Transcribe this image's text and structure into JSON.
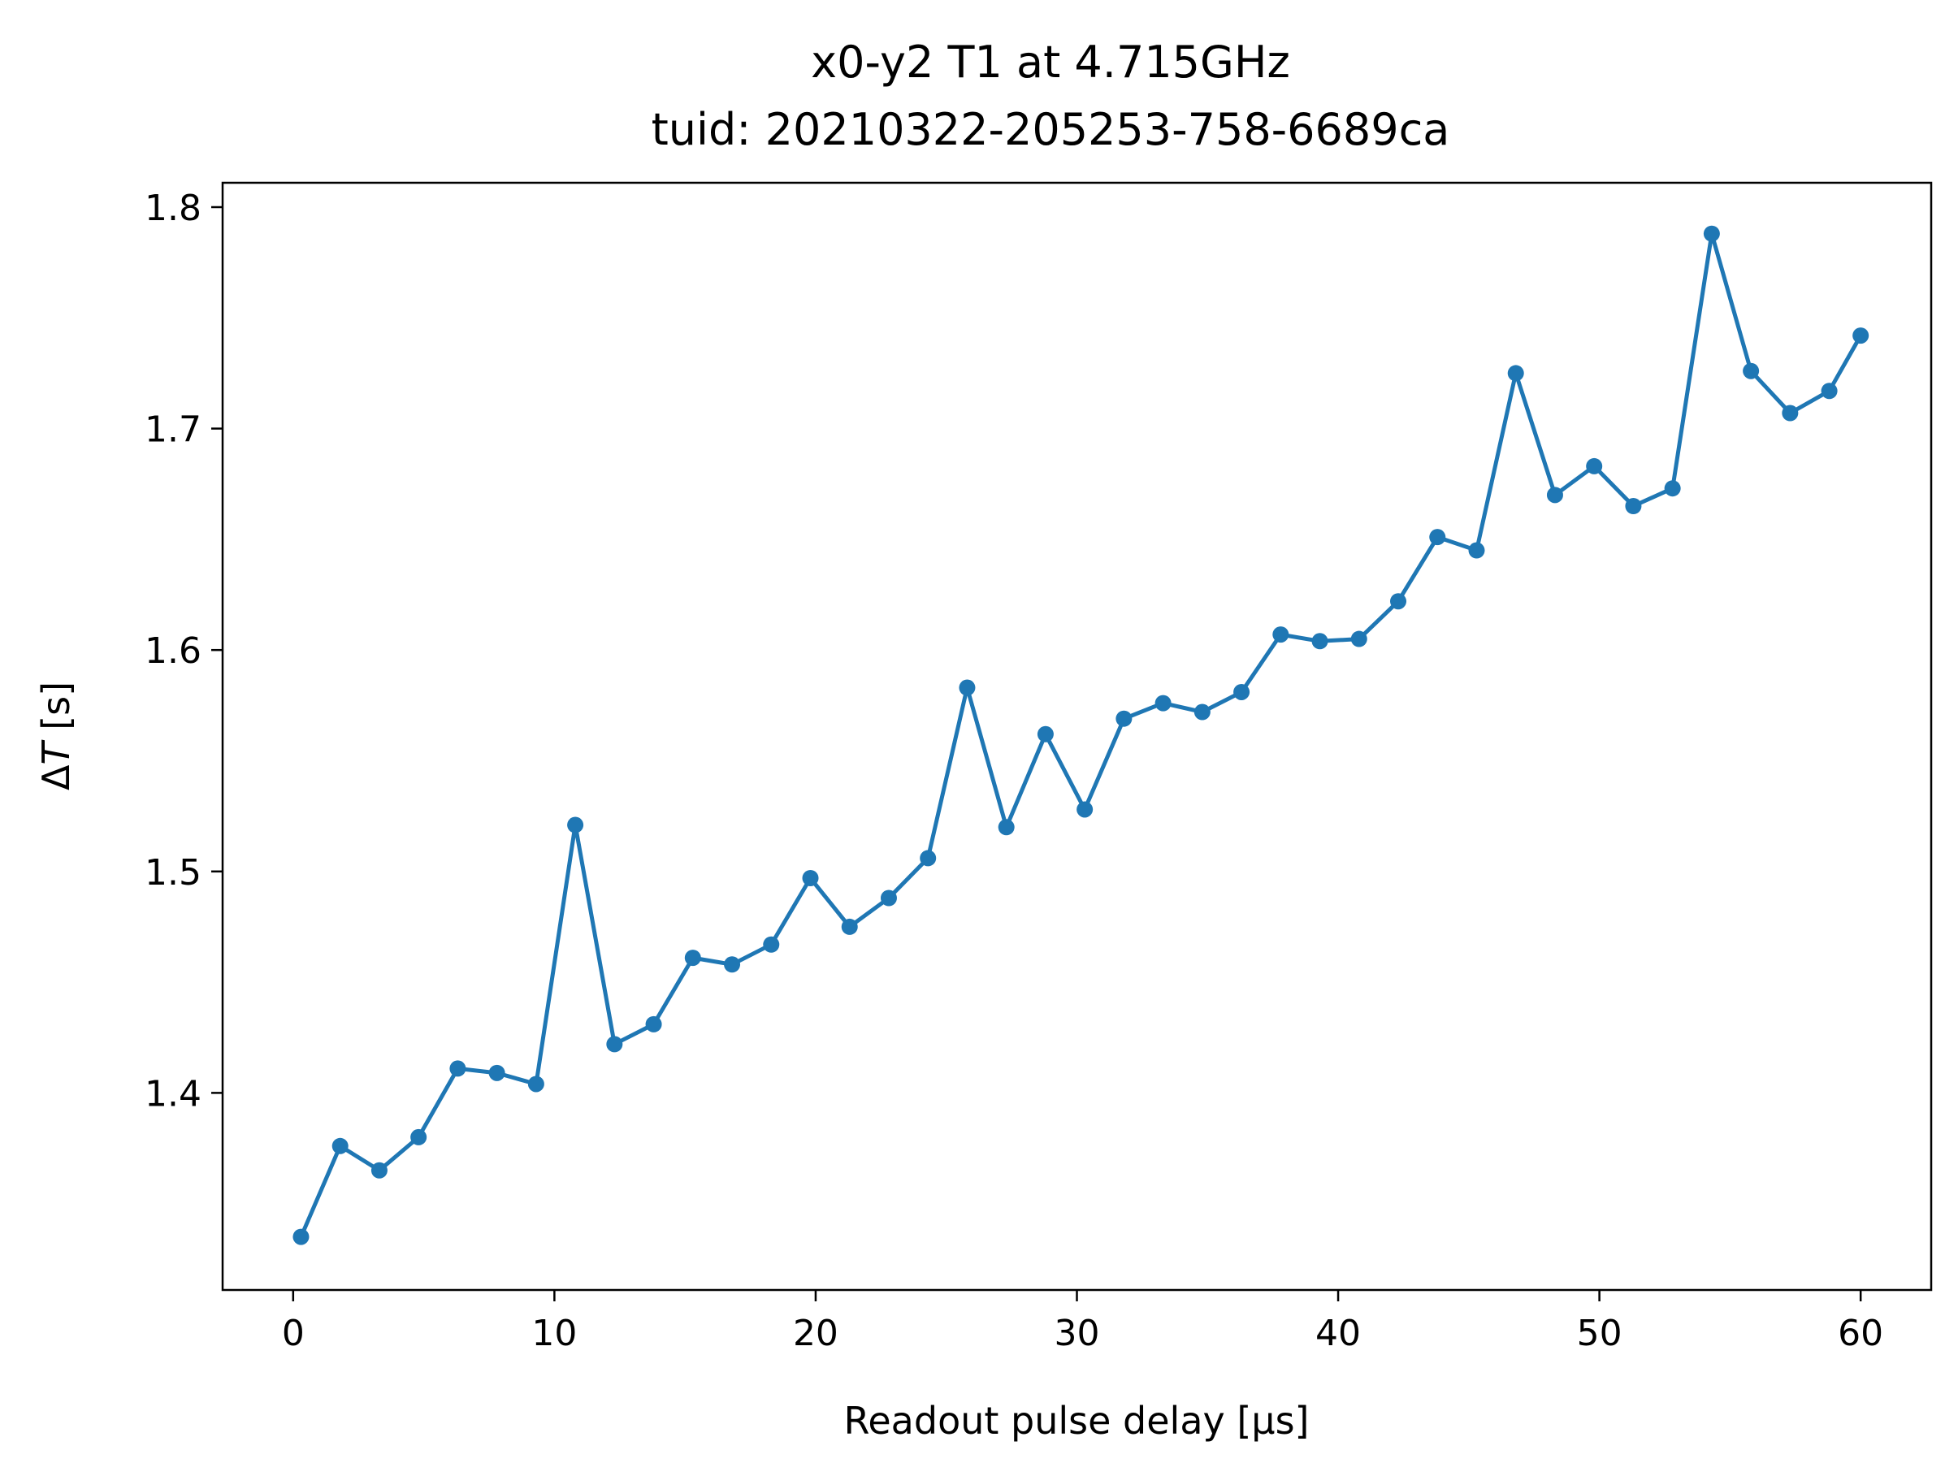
{
  "chart_data": {
    "type": "line",
    "title": "x0-y2 T1 at 4.715GHz",
    "subtitle": "tuid: 20210322-205253-758-6689ca",
    "xlabel": "Readout pulse delay [μs]",
    "ylabel": "ΔT [s]",
    "xlim": [
      -2.7,
      62.7
    ],
    "ylim": [
      1.311,
      1.811
    ],
    "xticks": [
      0,
      10,
      20,
      30,
      40,
      50,
      60
    ],
    "yticks": [
      1.4,
      1.5,
      1.6,
      1.7,
      1.8
    ],
    "xtick_labels": [
      "0",
      "10",
      "20",
      "30",
      "40",
      "50",
      "60"
    ],
    "ytick_labels": [
      "1.4",
      "1.5",
      "1.6",
      "1.7",
      "1.8"
    ],
    "grid": false,
    "series": [
      {
        "color": "#1f77b4",
        "marker": "circle",
        "x": [
          0.3,
          1.8,
          3.3,
          4.8,
          6.3,
          7.8,
          9.3,
          10.8,
          12.3,
          13.8,
          15.3,
          16.8,
          18.3,
          19.8,
          21.3,
          22.8,
          24.3,
          25.8,
          27.3,
          28.8,
          30.3,
          31.8,
          33.3,
          34.8,
          36.3,
          37.8,
          39.3,
          40.8,
          42.3,
          43.8,
          45.3,
          46.8,
          48.3,
          49.8,
          51.3,
          52.8,
          54.3,
          55.8,
          57.3,
          58.8,
          60.0
        ],
        "y": [
          1.335,
          1.376,
          1.365,
          1.38,
          1.411,
          1.409,
          1.404,
          1.521,
          1.422,
          1.431,
          1.461,
          1.458,
          1.467,
          1.497,
          1.475,
          1.488,
          1.506,
          1.583,
          1.52,
          1.562,
          1.528,
          1.569,
          1.576,
          1.572,
          1.581,
          1.607,
          1.604,
          1.605,
          1.622,
          1.651,
          1.645,
          1.725,
          1.67,
          1.683,
          1.665,
          1.673,
          1.788,
          1.726,
          1.707,
          1.717,
          1.742
        ]
      }
    ]
  }
}
